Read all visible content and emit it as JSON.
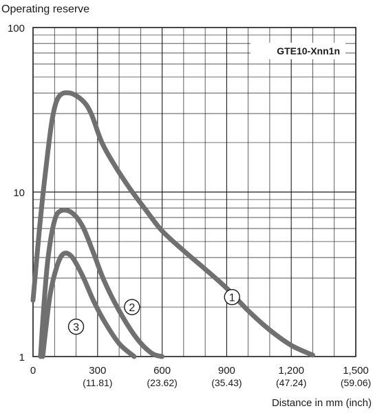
{
  "chart_data": {
    "type": "line",
    "title": "GTE10-Xnn1n",
    "ylabel": "Operating reserve",
    "xlabel": "Distance in mm (inch)",
    "yscale": "log",
    "ylim": [
      1,
      100
    ],
    "xlim": [
      0,
      1500
    ],
    "grid": true,
    "y_ticks": [
      {
        "value": 1,
        "label": "1"
      },
      {
        "value": 10,
        "label": "10"
      },
      {
        "value": 100,
        "label": "100"
      }
    ],
    "x_ticks": [
      {
        "value": 0,
        "label": "0",
        "sub": ""
      },
      {
        "value": 300,
        "label": "300",
        "sub": "(11.81)"
      },
      {
        "value": 600,
        "label": "600",
        "sub": "(23.62)"
      },
      {
        "value": 900,
        "label": "900",
        "sub": "(35.43)"
      },
      {
        "value": 1200,
        "label": "1,200",
        "sub": "(47.24)"
      },
      {
        "value": 1500,
        "label": "1,500",
        "sub": "(59.06)"
      }
    ],
    "series": [
      {
        "marker": "1",
        "marker_pos": [
          925,
          2.3
        ],
        "points": [
          [
            0,
            2.2
          ],
          [
            30,
            6
          ],
          [
            60,
            14
          ],
          [
            90,
            28
          ],
          [
            120,
            38
          ],
          [
            170,
            40
          ],
          [
            230,
            36
          ],
          [
            270,
            30
          ],
          [
            320,
            20
          ],
          [
            380,
            14.5
          ],
          [
            450,
            10.5
          ],
          [
            530,
            7.6
          ],
          [
            600,
            5.8
          ],
          [
            700,
            4.4
          ],
          [
            800,
            3.4
          ],
          [
            900,
            2.6
          ],
          [
            1000,
            1.9
          ],
          [
            1100,
            1.45
          ],
          [
            1200,
            1.17
          ],
          [
            1300,
            1.02
          ]
        ]
      },
      {
        "marker": "2",
        "marker_pos": [
          460,
          2.0
        ],
        "points": [
          [
            35,
            1
          ],
          [
            50,
            2
          ],
          [
            70,
            4
          ],
          [
            100,
            6.7
          ],
          [
            130,
            7.7
          ],
          [
            180,
            7.5
          ],
          [
            230,
            6.2
          ],
          [
            280,
            4.3
          ],
          [
            330,
            2.9
          ],
          [
            400,
            1.9
          ],
          [
            480,
            1.3
          ],
          [
            550,
            1.05
          ],
          [
            600,
            1
          ]
        ]
      },
      {
        "marker": "3",
        "marker_pos": [
          200,
          1.52
        ],
        "points": [
          [
            45,
            1
          ],
          [
            60,
            1.5
          ],
          [
            80,
            2.4
          ],
          [
            110,
            3.5
          ],
          [
            140,
            4.2
          ],
          [
            180,
            4.05
          ],
          [
            230,
            3.1
          ],
          [
            280,
            2.2
          ],
          [
            330,
            1.65
          ],
          [
            400,
            1.2
          ],
          [
            470,
            1
          ]
        ]
      }
    ]
  }
}
